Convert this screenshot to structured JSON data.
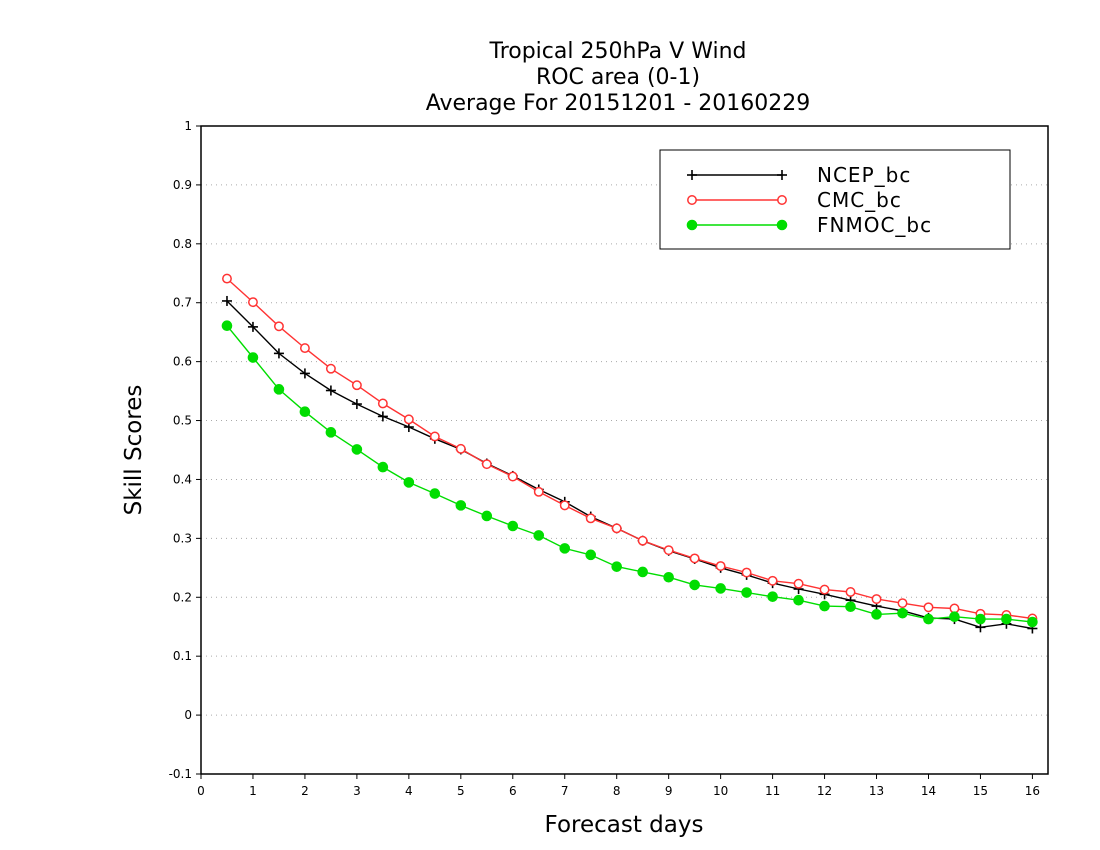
{
  "chart_data": {
    "type": "line",
    "title_lines": [
      "Tropical 250hPa V Wind",
      "ROC area (0-1)",
      "Average For 20151201 - 20160229"
    ],
    "xlabel": "Forecast days",
    "ylabel": "Skill Scores",
    "xlim": [
      0,
      16.3
    ],
    "ylim": [
      -0.1,
      1
    ],
    "xticks": [
      0,
      1,
      2,
      3,
      4,
      5,
      6,
      7,
      8,
      9,
      10,
      11,
      12,
      13,
      14,
      15,
      16
    ],
    "yticks": [
      -0.1,
      0,
      0.1,
      0.2,
      0.3,
      0.4,
      0.5,
      0.6,
      0.7,
      0.8,
      0.9,
      1
    ],
    "ytick_labels": [
      "-0.1",
      "0",
      "0.1",
      "0.2",
      "0.3",
      "0.4",
      "0.5",
      "0.6",
      "0.7",
      "0.8",
      "0.9",
      "1"
    ],
    "grid": true,
    "legend_position": "top-right",
    "x": [
      0.5,
      1,
      1.5,
      2,
      2.5,
      3,
      3.5,
      4,
      4.5,
      5,
      5.5,
      6,
      6.5,
      7,
      7.5,
      8,
      8.5,
      9,
      9.5,
      10,
      10.5,
      11,
      11.5,
      12,
      12.5,
      13,
      13.5,
      14,
      14.5,
      15,
      15.5,
      16
    ],
    "series": [
      {
        "name": "NCEP_bc",
        "color": "#000000",
        "marker": "plus",
        "values": [
          0.703,
          0.659,
          0.614,
          0.58,
          0.551,
          0.528,
          0.507,
          0.489,
          0.469,
          0.451,
          0.427,
          0.406,
          0.383,
          0.362,
          0.337,
          0.317,
          0.296,
          0.279,
          0.265,
          0.25,
          0.238,
          0.224,
          0.214,
          0.205,
          0.195,
          0.185,
          0.177,
          0.165,
          0.163,
          0.149,
          0.155,
          0.147
        ]
      },
      {
        "name": "CMC_bc",
        "color": "#ff3333",
        "marker": "open-circle",
        "values": [
          0.741,
          0.701,
          0.66,
          0.623,
          0.588,
          0.56,
          0.529,
          0.502,
          0.473,
          0.452,
          0.426,
          0.405,
          0.379,
          0.356,
          0.334,
          0.317,
          0.296,
          0.28,
          0.266,
          0.253,
          0.242,
          0.228,
          0.223,
          0.213,
          0.209,
          0.197,
          0.19,
          0.183,
          0.181,
          0.172,
          0.17,
          0.164
        ]
      },
      {
        "name": "FNMOC_bc",
        "color": "#00dd00",
        "marker": "filled-circle",
        "values": [
          0.661,
          0.607,
          0.553,
          0.515,
          0.48,
          0.451,
          0.421,
          0.395,
          0.376,
          0.356,
          0.338,
          0.321,
          0.305,
          0.283,
          0.272,
          0.252,
          0.243,
          0.234,
          0.221,
          0.215,
          0.208,
          0.201,
          0.195,
          0.185,
          0.184,
          0.171,
          0.173,
          0.163,
          0.167,
          0.163,
          0.163,
          0.158
        ]
      }
    ]
  }
}
